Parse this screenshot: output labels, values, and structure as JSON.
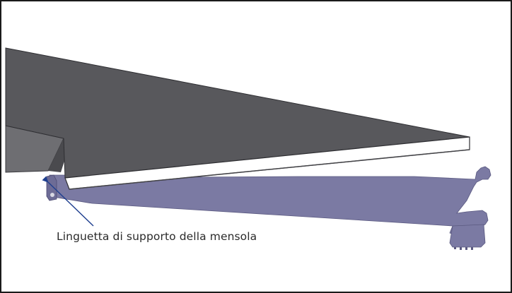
{
  "callout": {
    "label": "Linguetta di supporto della mensola",
    "arrow_color": "#1f3f8f"
  },
  "colors": {
    "shelf_top": "#58585c",
    "shelf_edge": "#ffffff",
    "bracket": "#7b7aa3",
    "frame_border": "#1a1a1a"
  }
}
